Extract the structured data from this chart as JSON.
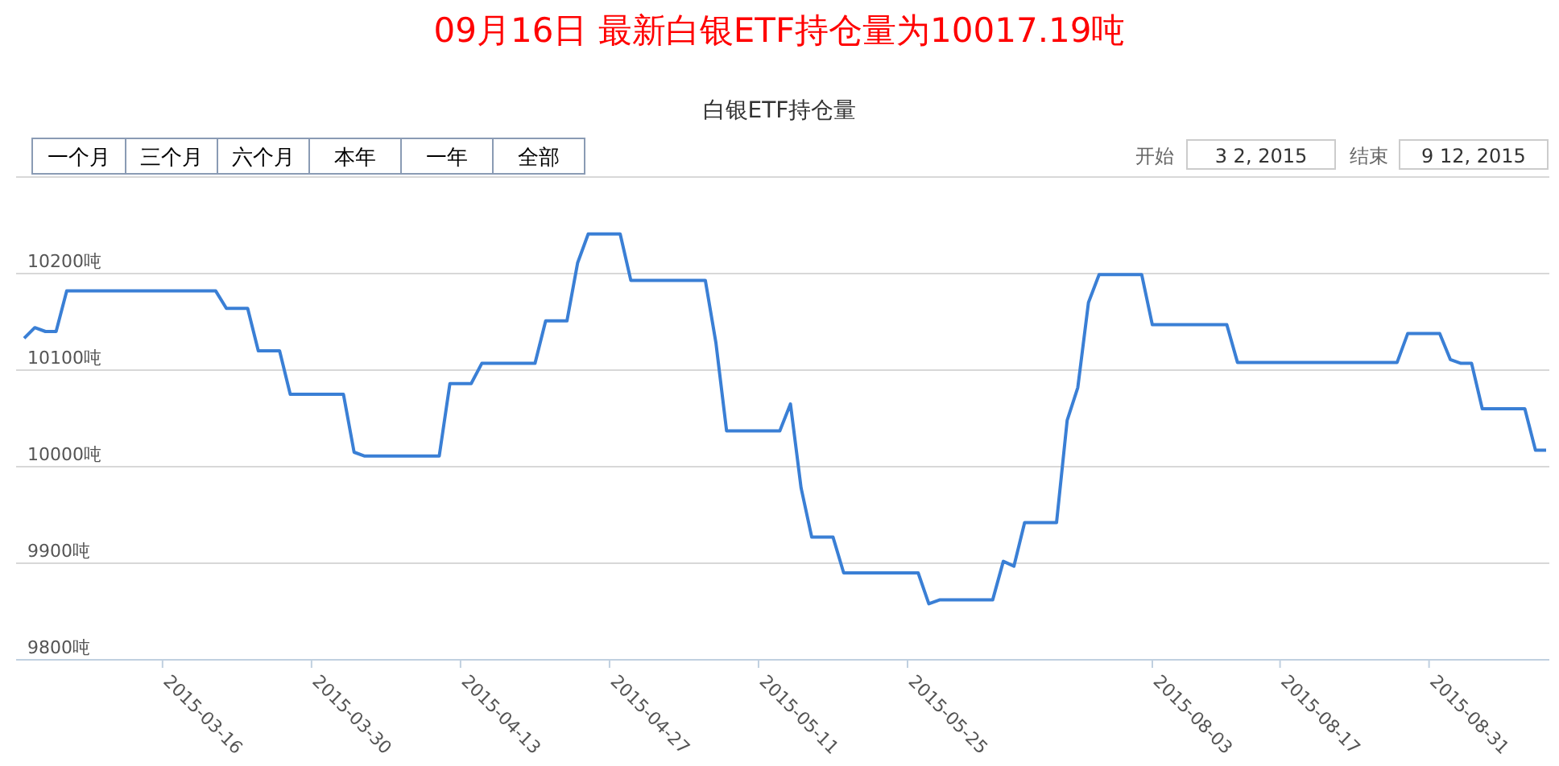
{
  "chart_data": {
    "type": "line",
    "title": "09月16日 最新白银ETF持仓量为10017.19吨",
    "subtitle": "白银ETF持仓量",
    "annotations": [
      "一个月",
      "三个月",
      "六个月",
      "本年",
      "一年",
      "全部",
      "开始",
      "3 2, 2015",
      "结束",
      "9 12, 2015"
    ],
    "categories": [
      null,
      null,
      null,
      null,
      null,
      null,
      null,
      null,
      null,
      null,
      null,
      null,
      null,
      "2015-03-16",
      null,
      null,
      null,
      null,
      null,
      null,
      null,
      null,
      null,
      null,
      null,
      null,
      null,
      "2015-03-30",
      null,
      null,
      null,
      null,
      null,
      null,
      null,
      null,
      null,
      null,
      null,
      null,
      null,
      "2015-04-13",
      null,
      null,
      null,
      null,
      null,
      null,
      null,
      null,
      null,
      null,
      null,
      null,
      null,
      "2015-04-27",
      null,
      null,
      null,
      null,
      null,
      null,
      null,
      null,
      null,
      null,
      null,
      null,
      null,
      "2015-05-11",
      null,
      null,
      null,
      null,
      null,
      null,
      null,
      null,
      null,
      null,
      null,
      null,
      null,
      "2015-05-25",
      null,
      null,
      null,
      null,
      null,
      null,
      null,
      null,
      null,
      null,
      null,
      null,
      null,
      null,
      null,
      null,
      null,
      null,
      null,
      null,
      null,
      null,
      "2015-08-03",
      null,
      null,
      null,
      null,
      null,
      null,
      null,
      null,
      null,
      null,
      null,
      "2015-08-17",
      null,
      null,
      null,
      null,
      null,
      null,
      null,
      null,
      null,
      null,
      null,
      null,
      null,
      "2015-08-31",
      null,
      null,
      null,
      null,
      null,
      null,
      null,
      null,
      null,
      null,
      null
    ],
    "series": [
      {
        "color": "#3a7fd5",
        "values": [
          10133,
          10144,
          10140,
          10140,
          10182,
          10182,
          10182,
          10182,
          10182,
          10182,
          10182,
          10182,
          10182,
          10182,
          10182,
          10182,
          10182,
          10182,
          10182,
          10164,
          10164,
          10164,
          10120,
          10120,
          10120,
          10075,
          10075,
          10075,
          10075,
          10075,
          10075,
          10015,
          10011,
          10011,
          10011,
          10011,
          10011,
          10011,
          10011,
          10011,
          10086,
          10086,
          10086,
          10107,
          10107,
          10107,
          10107,
          10107,
          10107,
          10151,
          10151,
          10151,
          10211,
          10241,
          10241,
          10241,
          10241,
          10193,
          10193,
          10193,
          10193,
          10193,
          10193,
          10193,
          10193,
          10128,
          10037,
          10037,
          10037,
          10037,
          10037,
          10037,
          10065,
          9978,
          9927,
          9927,
          9927,
          9890,
          9890,
          9890,
          9890,
          9890,
          9890,
          9890,
          9890,
          9858,
          9862,
          9862,
          9862,
          9862,
          9862,
          9862,
          9902,
          9897,
          9942,
          9942,
          9942,
          9942,
          10048,
          10082,
          10170,
          10199,
          10199,
          10199,
          10199,
          10199,
          10147,
          10147,
          10147,
          10147,
          10147,
          10147,
          10147,
          10147,
          10108,
          10108,
          10108,
          10108,
          10108,
          10108,
          10108,
          10108,
          10108,
          10108,
          10108,
          10108,
          10108,
          10108,
          10108,
          10108,
          10138,
          10138,
          10138,
          10138,
          10111,
          10107,
          10107,
          10060,
          10060,
          10060,
          10060,
          10060,
          10017,
          10017
        ]
      }
    ],
    "ylim": [
      9800,
      10300
    ],
    "yticks": [
      {
        "value": 9800,
        "label": "9800吨"
      },
      {
        "value": 9900,
        "label": "9900吨"
      },
      {
        "value": 10000,
        "label": "10000吨"
      },
      {
        "value": 10100,
        "label": "10100吨"
      },
      {
        "value": 10200,
        "label": "10200吨"
      },
      {
        "value": 10300,
        "label": null
      }
    ],
    "grid": "y"
  }
}
